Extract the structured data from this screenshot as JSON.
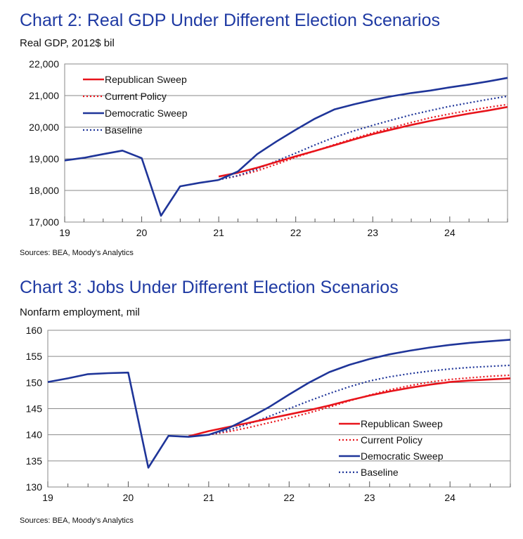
{
  "colors": {
    "republican": "#e8141b",
    "democratic": "#1f3599",
    "title": "#1f3aa3",
    "grid": "#8a8a8a"
  },
  "chart_data": [
    {
      "type": "line",
      "title": "Chart 2: Real GDP Under Different Election Scenarios",
      "ylabel": "Real GDP, 2012$ bil",
      "source": "Sources: BEA, Moody’s Analytics",
      "xlim": [
        19,
        24.75
      ],
      "ylim": [
        17000,
        22000
      ],
      "x_ticks": [
        19,
        20,
        21,
        22,
        23,
        24
      ],
      "x_tick_labels": [
        "19",
        "20",
        "21",
        "22",
        "23",
        "24"
      ],
      "y_ticks": [
        17000,
        18000,
        19000,
        20000,
        21000,
        22000
      ],
      "y_tick_labels": [
        "17,000",
        "18,000",
        "19,000",
        "20,000",
        "21,000",
        "22,000"
      ],
      "legend_position": "top-left",
      "history": {
        "x": [
          19,
          19.25,
          19.5,
          19.75,
          20,
          20.25,
          20.5,
          20.75,
          21
        ],
        "y": [
          18950,
          19030,
          19150,
          19260,
          19020,
          17200,
          18130,
          18240,
          18330
        ]
      },
      "series": [
        {
          "name": "Republican Sweep",
          "style": "solid",
          "color": "#e8141b",
          "x": [
            21,
            21.25,
            21.5,
            21.75,
            22,
            22.25,
            22.5,
            22.75,
            23,
            23.25,
            23.5,
            23.75,
            24,
            24.25,
            24.5,
            24.75
          ],
          "values": [
            18440,
            18560,
            18720,
            18900,
            19080,
            19250,
            19430,
            19610,
            19780,
            19930,
            20070,
            20200,
            20320,
            20430,
            20530,
            20640
          ]
        },
        {
          "name": "Current Policy",
          "style": "dotted",
          "color": "#e8141b",
          "x": [
            21,
            21.25,
            21.5,
            21.75,
            22,
            22.25,
            22.5,
            22.75,
            23,
            23.25,
            23.5,
            23.75,
            24,
            24.25,
            24.5,
            24.75
          ],
          "values": [
            18340,
            18460,
            18620,
            18830,
            19050,
            19250,
            19450,
            19640,
            19820,
            19990,
            20150,
            20300,
            20420,
            20530,
            20630,
            20720
          ]
        },
        {
          "name": "Democratic Sweep",
          "style": "solid",
          "color": "#1f3599",
          "x": [
            21,
            21.25,
            21.5,
            21.75,
            22,
            22.25,
            22.5,
            22.75,
            23,
            23.25,
            23.5,
            23.75,
            24,
            24.25,
            24.5,
            24.75
          ],
          "values": [
            18330,
            18600,
            19150,
            19550,
            19920,
            20270,
            20560,
            20720,
            20860,
            20980,
            21080,
            21160,
            21260,
            21350,
            21450,
            21560
          ]
        },
        {
          "name": "Baseline",
          "style": "dotted",
          "color": "#1f3599",
          "x": [
            21,
            21.25,
            21.5,
            21.75,
            22,
            22.25,
            22.5,
            22.75,
            23,
            23.25,
            23.5,
            23.75,
            24,
            24.25,
            24.5,
            24.75
          ],
          "values": [
            18340,
            18470,
            18680,
            18930,
            19180,
            19440,
            19680,
            19880,
            20060,
            20230,
            20390,
            20530,
            20660,
            20770,
            20880,
            20980
          ]
        }
      ]
    },
    {
      "type": "line",
      "title": "Chart 3: Jobs Under Different Election Scenarios",
      "ylabel": "Nonfarm employment, mil",
      "source": "Sources: BEA, Moody’s Analytics",
      "xlim": [
        19,
        24.75
      ],
      "ylim": [
        130,
        160
      ],
      "x_ticks": [
        19,
        20,
        21,
        22,
        23,
        24
      ],
      "x_tick_labels": [
        "19",
        "20",
        "21",
        "22",
        "23",
        "24"
      ],
      "y_ticks": [
        130,
        135,
        140,
        145,
        150,
        155,
        160
      ],
      "y_tick_labels": [
        "130",
        "135",
        "140",
        "145",
        "150",
        "155",
        "160"
      ],
      "legend_position": "bottom-right",
      "history": {
        "x": [
          19,
          19.25,
          19.5,
          19.75,
          20,
          20.25,
          20.5,
          20.75,
          21
        ],
        "y": [
          150.1,
          150.8,
          151.6,
          151.8,
          151.9,
          133.7,
          139.8,
          139.6,
          140.0
        ]
      },
      "series": [
        {
          "name": "Republican Sweep",
          "style": "solid",
          "color": "#e8141b",
          "x": [
            20.75,
            21,
            21.25,
            21.5,
            21.75,
            22,
            22.25,
            22.5,
            22.75,
            23,
            23.25,
            23.5,
            23.75,
            24,
            24.25,
            24.5,
            24.75
          ],
          "values": [
            139.7,
            140.7,
            141.5,
            142.3,
            143.1,
            143.9,
            144.7,
            145.6,
            146.6,
            147.5,
            148.3,
            149.0,
            149.6,
            150.1,
            150.4,
            150.6,
            150.8
          ]
        },
        {
          "name": "Current Policy",
          "style": "dotted",
          "color": "#e8141b",
          "x": [
            21,
            21.25,
            21.5,
            21.75,
            22,
            22.25,
            22.5,
            22.75,
            23,
            23.25,
            23.5,
            23.75,
            24,
            24.25,
            24.5,
            24.75
          ],
          "values": [
            140.0,
            140.6,
            141.4,
            142.3,
            143.2,
            144.2,
            145.3,
            146.5,
            147.6,
            148.6,
            149.4,
            150.1,
            150.6,
            150.9,
            151.2,
            151.4
          ]
        },
        {
          "name": "Democratic Sweep",
          "style": "solid",
          "color": "#1f3599",
          "x": [
            21,
            21.25,
            21.5,
            21.75,
            22,
            22.25,
            22.5,
            22.75,
            23,
            23.25,
            23.5,
            23.75,
            24,
            24.25,
            24.5,
            24.75
          ],
          "values": [
            140.0,
            141.3,
            143.2,
            145.3,
            147.7,
            150.0,
            152.0,
            153.4,
            154.5,
            155.4,
            156.1,
            156.7,
            157.2,
            157.6,
            157.9,
            158.2
          ]
        },
        {
          "name": "Baseline",
          "style": "dotted",
          "color": "#1f3599",
          "x": [
            21,
            21.25,
            21.5,
            21.75,
            22,
            22.25,
            22.5,
            22.75,
            23,
            23.25,
            23.5,
            23.75,
            24,
            24.25,
            24.5,
            24.75
          ],
          "values": [
            140.0,
            140.9,
            142.1,
            143.5,
            145.0,
            146.5,
            147.9,
            149.2,
            150.3,
            151.1,
            151.7,
            152.2,
            152.6,
            152.9,
            153.1,
            153.3
          ]
        }
      ]
    }
  ]
}
